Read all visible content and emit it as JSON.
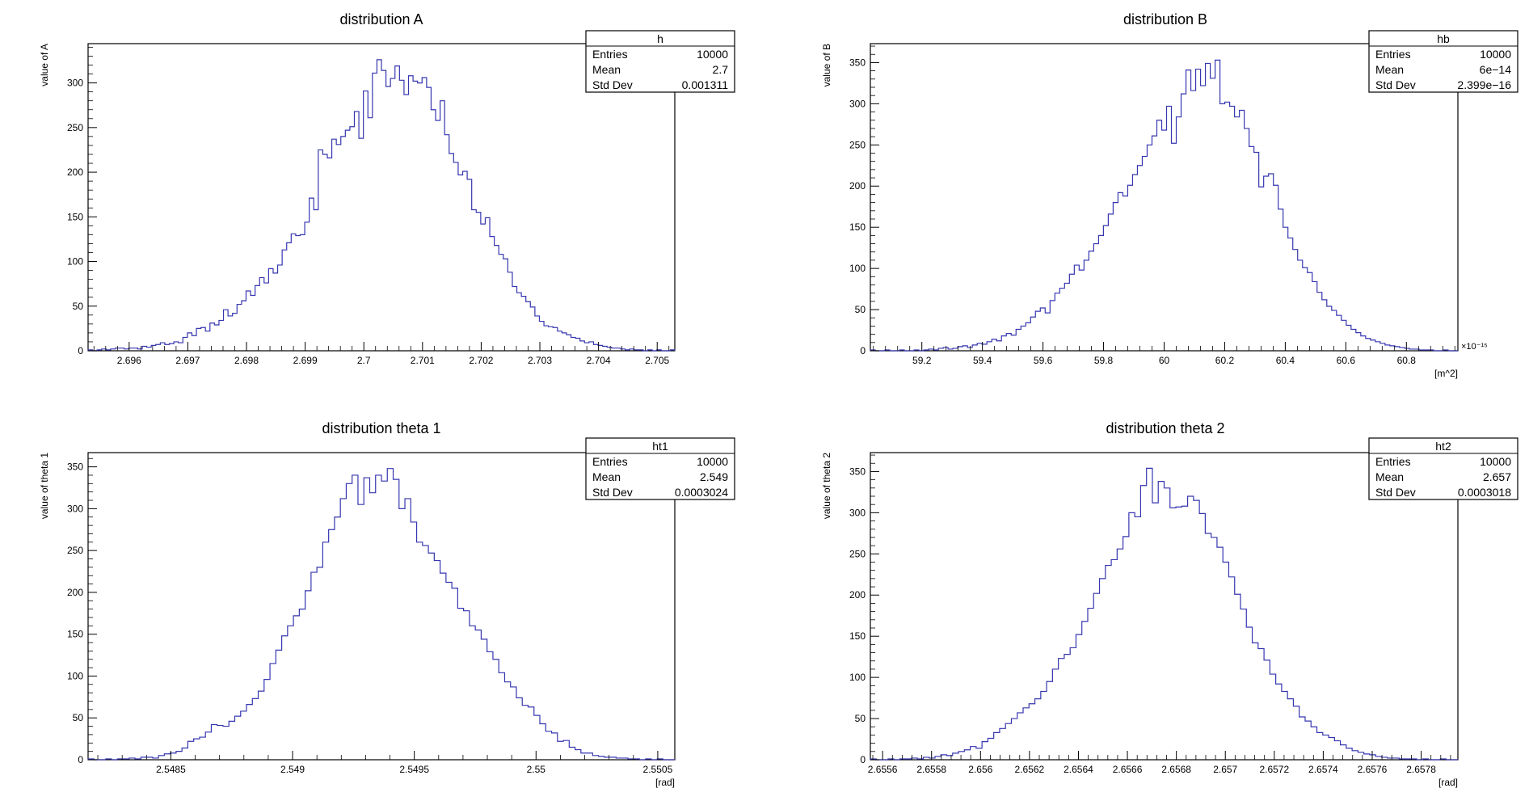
{
  "colors": {
    "histogram": "#3636b0",
    "axis": "#000000",
    "background": "#ffffff"
  },
  "chart_data": [
    {
      "type": "bar",
      "style": "step histogram",
      "title": "distribution A",
      "xlabel": "",
      "ylabel": "value of A",
      "xlim": [
        2.6953,
        2.7053
      ],
      "ylim": [
        0,
        344
      ],
      "xticks": [
        2.696,
        2.697,
        2.698,
        2.699,
        2.7,
        2.701,
        2.702,
        2.703,
        2.704,
        2.705
      ],
      "xtick_labels": [
        "2.696",
        "2.697",
        "2.698",
        "2.699",
        "2.7",
        "2.701",
        "2.702",
        "2.703",
        "2.704",
        "2.705"
      ],
      "yticks": [
        0,
        50,
        100,
        150,
        200,
        250,
        300
      ],
      "x_multiplier": "",
      "stats": {
        "name": "h",
        "rows": [
          {
            "label": "Entries",
            "value": "10000"
          },
          {
            "label": "Mean",
            "value": "2.7"
          },
          {
            "label": "Std Dev",
            "value": "0.001311"
          }
        ]
      },
      "values": [
        1,
        0,
        1,
        2,
        1,
        2,
        3,
        3,
        2,
        3,
        3,
        2,
        5,
        4,
        6,
        7,
        9,
        7,
        8,
        10,
        9,
        15,
        20,
        17,
        25,
        26,
        22,
        31,
        29,
        34,
        46,
        39,
        42,
        52,
        56,
        67,
        62,
        73,
        82,
        76,
        92,
        87,
        96,
        113,
        121,
        131,
        129,
        130,
        144,
        171,
        158,
        225,
        220,
        216,
        237,
        231,
        240,
        247,
        251,
        268,
        238,
        291,
        261,
        311,
        326,
        314,
        296,
        305,
        319,
        303,
        287,
        308,
        302,
        300,
        306,
        295,
        270,
        258,
        280,
        242,
        221,
        211,
        197,
        201,
        192,
        158,
        155,
        142,
        149,
        128,
        118,
        108,
        103,
        88,
        72,
        65,
        61,
        55,
        49,
        39,
        33,
        28,
        27,
        26,
        22,
        20,
        18,
        15,
        14,
        11,
        9,
        10,
        7,
        6,
        5,
        4,
        3,
        3,
        2,
        1,
        2,
        1,
        1,
        0,
        1,
        0,
        1,
        0,
        0,
        1
      ]
    },
    {
      "type": "bar",
      "style": "step histogram",
      "title": "distribution  B",
      "xlabel": "[m^2]",
      "ylabel": "value of B",
      "xlim": [
        59.03,
        60.97
      ],
      "ylim": [
        0,
        373
      ],
      "xticks": [
        59.2,
        59.4,
        59.6,
        59.8,
        60,
        60.2,
        60.4,
        60.6,
        60.8
      ],
      "xtick_labels": [
        "59.2",
        "59.4",
        "59.6",
        "59.8",
        "60",
        "60.2",
        "60.4",
        "60.6",
        "60.8"
      ],
      "yticks": [
        0,
        50,
        100,
        150,
        200,
        250,
        300,
        350
      ],
      "x_multiplier": "×10⁻¹⁵",
      "stats": {
        "name": "hb",
        "rows": [
          {
            "label": "Entries",
            "value": "10000"
          },
          {
            "label": "Mean",
            "value": "6e−14"
          },
          {
            "label": "Std Dev",
            "value": "2.399e−16"
          }
        ]
      },
      "values": [
        1,
        0,
        0,
        1,
        0,
        0,
        1,
        0,
        0,
        1,
        0,
        1,
        2,
        1,
        3,
        4,
        2,
        3,
        5,
        6,
        4,
        7,
        9,
        8,
        11,
        14,
        12,
        18,
        21,
        19,
        26,
        30,
        34,
        41,
        48,
        52,
        46,
        61,
        70,
        76,
        82,
        93,
        104,
        98,
        110,
        121,
        130,
        140,
        152,
        166,
        180,
        192,
        188,
        201,
        214,
        225,
        236,
        250,
        261,
        280,
        268,
        297,
        252,
        284,
        312,
        341,
        316,
        342,
        322,
        349,
        331,
        353,
        300,
        302,
        297,
        284,
        292,
        270,
        248,
        241,
        199,
        212,
        215,
        201,
        172,
        150,
        137,
        123,
        110,
        101,
        95,
        84,
        71,
        62,
        54,
        49,
        43,
        37,
        31,
        26,
        22,
        18,
        15,
        13,
        11,
        9,
        7,
        6,
        5,
        4,
        3,
        2,
        2,
        1,
        1,
        1,
        0,
        0,
        1,
        0,
        0
      ]
    },
    {
      "type": "bar",
      "style": "step histogram",
      "title": "distribution theta 1",
      "xlabel": "[rad]",
      "ylabel": "value of theta 1",
      "xlim": [
        2.54816,
        2.55057
      ],
      "ylim": [
        0,
        367
      ],
      "xticks": [
        2.5485,
        2.549,
        2.5495,
        2.55,
        2.5505
      ],
      "xtick_labels": [
        "2.5485",
        "2.549",
        "2.5495",
        "2.55",
        "2.5505"
      ],
      "yticks": [
        0,
        50,
        100,
        150,
        200,
        250,
        300,
        350
      ],
      "x_multiplier": "",
      "stats": {
        "name": "ht1",
        "rows": [
          {
            "label": "Entries",
            "value": "10000"
          },
          {
            "label": "Mean",
            "value": "2.549"
          },
          {
            "label": "Std Dev",
            "value": "0.0003024"
          }
        ]
      },
      "values": [
        1,
        0,
        0,
        1,
        0,
        1,
        1,
        2,
        1,
        3,
        3,
        2,
        5,
        7,
        8,
        10,
        14,
        22,
        25,
        27,
        33,
        42,
        41,
        40,
        46,
        52,
        58,
        66,
        73,
        82,
        96,
        115,
        131,
        148,
        160,
        172,
        180,
        202,
        224,
        230,
        260,
        275,
        290,
        312,
        330,
        340,
        305,
        337,
        319,
        340,
        333,
        348,
        335,
        300,
        312,
        284,
        260,
        256,
        247,
        238,
        223,
        212,
        205,
        181,
        178,
        160,
        155,
        144,
        129,
        120,
        104,
        93,
        87,
        74,
        65,
        63,
        53,
        43,
        34,
        32,
        22,
        23,
        15,
        12,
        8,
        8,
        5,
        4,
        3,
        3,
        2,
        2,
        1,
        1,
        0,
        1,
        0,
        1,
        0,
        0
      ]
    },
    {
      "type": "bar",
      "style": "step histogram",
      "title": "distribution theta 2",
      "xlabel": "[rad]",
      "ylabel": "value of theta 2",
      "xlim": [
        2.65555,
        2.65795
      ],
      "ylim": [
        0,
        373
      ],
      "xticks": [
        2.6556,
        2.6558,
        2.656,
        2.6562,
        2.6564,
        2.6566,
        2.6568,
        2.657,
        2.6572,
        2.6574,
        2.6576,
        2.6578
      ],
      "xtick_labels": [
        "2.6556",
        "2.6558",
        "2.656",
        "2.6562",
        "2.6564",
        "2.6566",
        "2.6568",
        "2.657",
        "2.6572",
        "2.6574",
        "2.6576",
        "2.6578"
      ],
      "yticks": [
        0,
        50,
        100,
        150,
        200,
        250,
        300,
        350
      ],
      "x_multiplier": "",
      "stats": {
        "name": "ht2",
        "rows": [
          {
            "label": "Entries",
            "value": "10000"
          },
          {
            "label": "Mean",
            "value": "2.657"
          },
          {
            "label": "Std Dev",
            "value": "0.0003018"
          }
        ]
      },
      "values": [
        1,
        0,
        0,
        1,
        0,
        1,
        1,
        2,
        1,
        3,
        2,
        4,
        6,
        5,
        8,
        10,
        12,
        16,
        14,
        22,
        26,
        33,
        38,
        44,
        50,
        57,
        63,
        68,
        74,
        83,
        95,
        110,
        123,
        128,
        136,
        152,
        168,
        184,
        202,
        220,
        236,
        243,
        256,
        271,
        300,
        295,
        333,
        354,
        312,
        338,
        330,
        306,
        307,
        308,
        320,
        315,
        299,
        275,
        270,
        258,
        240,
        222,
        201,
        183,
        161,
        142,
        135,
        121,
        104,
        92,
        83,
        74,
        65,
        52,
        47,
        40,
        33,
        30,
        27,
        23,
        18,
        14,
        11,
        9,
        7,
        6,
        4,
        3,
        2,
        2,
        1,
        1,
        1,
        0,
        1,
        0,
        0,
        1,
        0,
        0
      ]
    }
  ]
}
